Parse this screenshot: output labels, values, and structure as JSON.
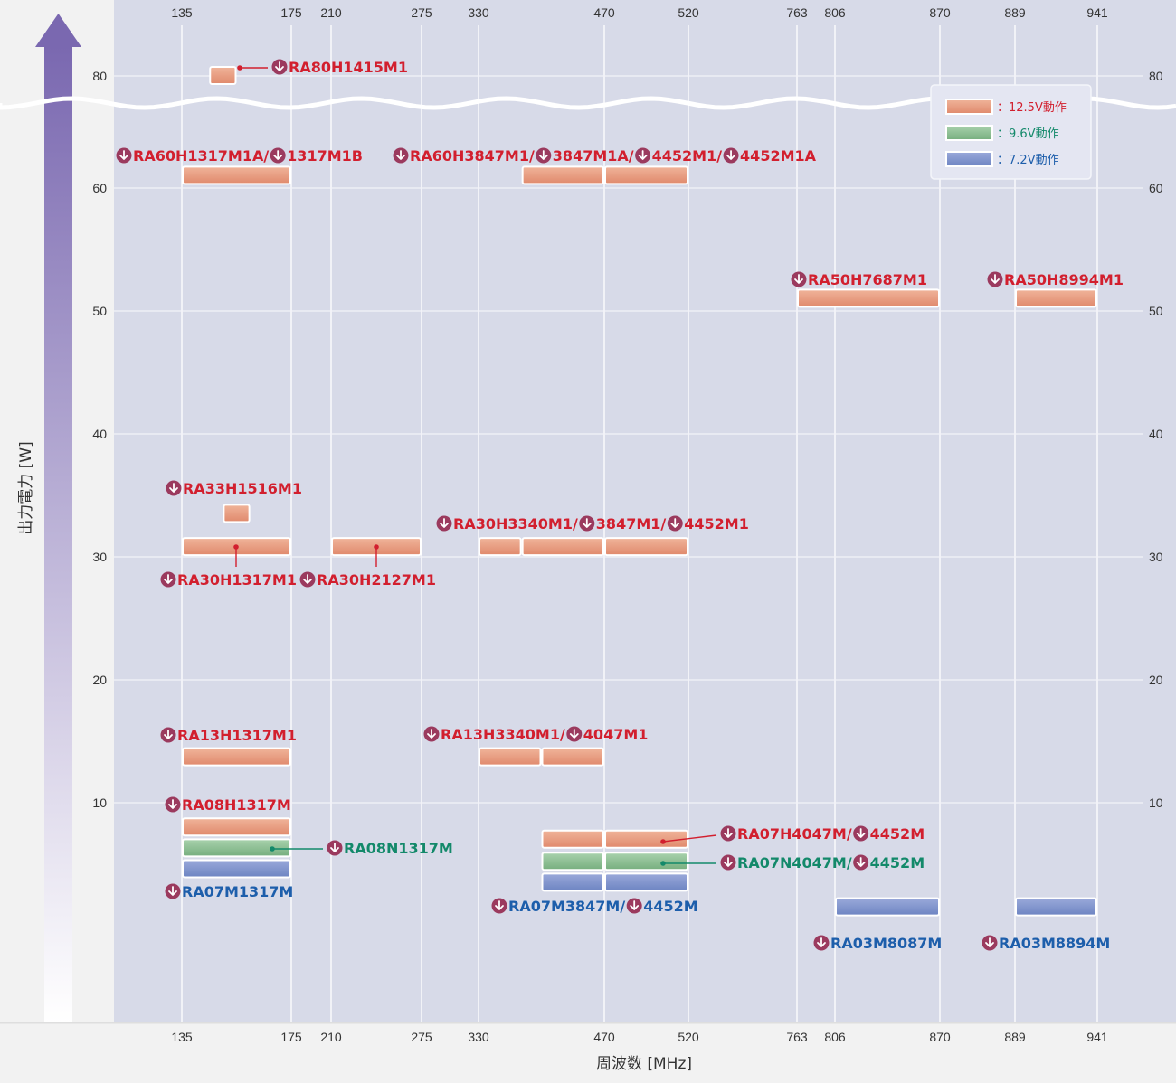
{
  "chart_data": {
    "type": "bar",
    "subtype": "range-bar",
    "title": "",
    "xlabel": "周波数 [MHz]",
    "ylabel": "出力電力 [W]",
    "x_ticks": [
      "135",
      "175",
      "210",
      "275",
      "330",
      "470",
      "520",
      "763",
      "806",
      "870",
      "889",
      "941"
    ],
    "y_ticks": [
      10,
      20,
      30,
      40,
      50,
      60,
      80
    ],
    "y_break": {
      "between": [
        60,
        80
      ]
    },
    "grid": true,
    "legend_position": "top-right",
    "legend": [
      {
        "key": "12.5V",
        "label": "：12.5V動作",
        "color": "#e7957a",
        "text_color": "#d21f2e"
      },
      {
        "key": "9.6V",
        "label": "：9.6V動作",
        "color": "#8dbf92",
        "text_color": "#13896a"
      },
      {
        "key": "7.2V",
        "label": "：7.2V動作",
        "color": "#8095cb",
        "text_color": "#1d5eab"
      }
    ],
    "icon": "download-circle-icon",
    "bars": [
      {
        "from": "145",
        "to": "155",
        "power": 80,
        "voltage": "12.5V"
      },
      {
        "from": "135",
        "to": "175",
        "power": 61,
        "voltage": "12.5V"
      },
      {
        "from": "378",
        "to": "470",
        "power": 61,
        "voltage": "12.5V"
      },
      {
        "from": "470",
        "to": "520",
        "power": 61,
        "voltage": "12.5V"
      },
      {
        "from": "763",
        "to": "870",
        "power": 51,
        "voltage": "12.5V"
      },
      {
        "from": "889",
        "to": "941",
        "power": 51,
        "voltage": "12.5V"
      },
      {
        "from": "150",
        "to": "160",
        "power": 33.5,
        "voltage": "12.5V"
      },
      {
        "from": "135",
        "to": "175",
        "power": 30.8,
        "voltage": "12.5V"
      },
      {
        "from": "210",
        "to": "275",
        "power": 30.8,
        "voltage": "12.5V"
      },
      {
        "from": "330",
        "to": "378",
        "power": 30.8,
        "voltage": "12.5V"
      },
      {
        "from": "378",
        "to": "470",
        "power": 30.8,
        "voltage": "12.5V"
      },
      {
        "from": "470",
        "to": "520",
        "power": 30.8,
        "voltage": "12.5V"
      },
      {
        "from": "135",
        "to": "175",
        "power": 13.7,
        "voltage": "12.5V"
      },
      {
        "from": "330",
        "to": "400",
        "power": 13.7,
        "voltage": "12.5V"
      },
      {
        "from": "400",
        "to": "470",
        "power": 13.7,
        "voltage": "12.5V"
      },
      {
        "from": "135",
        "to": "175",
        "power": 8,
        "voltage": "12.5V"
      },
      {
        "from": "135",
        "to": "175",
        "power": 6.3,
        "voltage": "9.6V"
      },
      {
        "from": "135",
        "to": "175",
        "power": 4.6,
        "voltage": "7.2V"
      },
      {
        "from": "400",
        "to": "470",
        "power": 7,
        "voltage": "12.5V"
      },
      {
        "from": "470",
        "to": "520",
        "power": 7,
        "voltage": "12.5V"
      },
      {
        "from": "400",
        "to": "470",
        "power": 5.2,
        "voltage": "9.6V"
      },
      {
        "from": "470",
        "to": "520",
        "power": 5.2,
        "voltage": "9.6V"
      },
      {
        "from": "400",
        "to": "470",
        "power": 3.5,
        "voltage": "7.2V"
      },
      {
        "from": "470",
        "to": "520",
        "power": 3.5,
        "voltage": "7.2V"
      },
      {
        "from": "806",
        "to": "870",
        "power": 1.5,
        "voltage": "7.2V"
      },
      {
        "from": "889",
        "to": "941",
        "power": 1.5,
        "voltage": "7.2V"
      }
    ],
    "labels": [
      {
        "parts": [
          "RA80H1415M1"
        ],
        "voltage": "12.5V"
      },
      {
        "parts": [
          "RA60H1317M1A/",
          "1317M1B"
        ],
        "voltage": "12.5V"
      },
      {
        "parts": [
          "RA60H3847M1/",
          "3847M1A/",
          "4452M1/",
          "4452M1A"
        ],
        "voltage": "12.5V"
      },
      {
        "parts": [
          "RA50H7687M1"
        ],
        "voltage": "12.5V"
      },
      {
        "parts": [
          "RA50H8994M1"
        ],
        "voltage": "12.5V"
      },
      {
        "parts": [
          "RA33H1516M1"
        ],
        "voltage": "12.5V"
      },
      {
        "parts": [
          "RA30H3340M1/",
          "3847M1/",
          "4452M1"
        ],
        "voltage": "12.5V"
      },
      {
        "parts": [
          "RA30H1317M1"
        ],
        "voltage": "12.5V"
      },
      {
        "parts": [
          "RA30H2127M1"
        ],
        "voltage": "12.5V"
      },
      {
        "parts": [
          "RA13H1317M1"
        ],
        "voltage": "12.5V"
      },
      {
        "parts": [
          "RA13H3340M1/",
          "4047M1"
        ],
        "voltage": "12.5V"
      },
      {
        "parts": [
          "RA08H1317M"
        ],
        "voltage": "12.5V"
      },
      {
        "parts": [
          "RA08N1317M"
        ],
        "voltage": "9.6V"
      },
      {
        "parts": [
          "RA07M1317M"
        ],
        "voltage": "7.2V"
      },
      {
        "parts": [
          "RA07H4047M/",
          "4452M"
        ],
        "voltage": "12.5V"
      },
      {
        "parts": [
          "RA07N4047M/",
          "4452M"
        ],
        "voltage": "9.6V"
      },
      {
        "parts": [
          "RA07M3847M/",
          "4452M"
        ],
        "voltage": "7.2V"
      },
      {
        "parts": [
          "RA03M8087M"
        ],
        "voltage": "7.2V"
      },
      {
        "parts": [
          "RA03M8894M"
        ],
        "voltage": "7.2V"
      }
    ]
  }
}
